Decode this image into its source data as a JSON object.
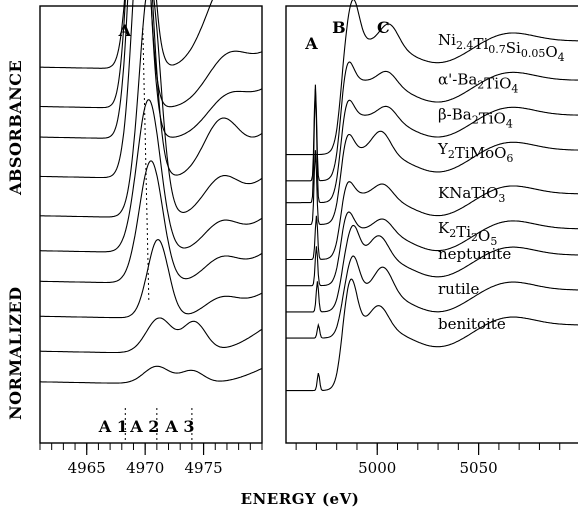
{
  "y_label_parts": [
    "ABSORBANCE",
    "NORMALIZED"
  ],
  "x_label": "ENERGY (eV)",
  "chart_data": [
    {
      "type": "line",
      "panel": "left",
      "xlabel": "ENERGY (eV)",
      "ylabel": "NORMALIZED ABSORBANCE",
      "xlim": [
        4961,
        4980
      ],
      "xticks": [
        4965,
        4970,
        4975
      ],
      "xtick_labels": [
        "4965",
        "4970",
        "4975"
      ],
      "peak_annotations": [
        {
          "label": "A",
          "x": 4969.8
        },
        {
          "label": "A 1",
          "x": 4968.3
        },
        {
          "label": "A 2",
          "x": 4971.0
        },
        {
          "label": "A 3",
          "x": 4974.0
        }
      ],
      "series": [
        {
          "baseline": 0.86,
          "peak_x": 4969.6,
          "peak_h": 0.68,
          "peak_w": 0.8,
          "bump_x": 4977.0,
          "bump_h": 0.18,
          "bump_w": 1.8,
          "step": 0.3
        },
        {
          "baseline": 0.77,
          "peak_x": 4969.4,
          "peak_h": 0.72,
          "peak_w": 0.75,
          "bump_x": 4977.0,
          "bump_h": 0.1,
          "bump_w": 1.8,
          "step": 0.22
        },
        {
          "baseline": 0.7,
          "peak_x": 4969.5,
          "peak_h": 0.72,
          "peak_w": 0.78,
          "bump_x": 4977.0,
          "bump_h": 0.08,
          "bump_w": 1.8,
          "step": 0.2
        },
        {
          "baseline": 0.61,
          "peak_x": 4969.8,
          "peak_h": 0.66,
          "peak_w": 0.85,
          "bump_x": 4976.5,
          "bump_h": 0.12,
          "bump_w": 1.5,
          "step": 0.2
        },
        {
          "baseline": 0.52,
          "peak_x": 4970.4,
          "peak_h": 0.54,
          "peak_w": 0.9,
          "bump_x": 4976.5,
          "bump_h": 0.08,
          "bump_w": 1.5,
          "step": 0.18
        },
        {
          "baseline": 0.44,
          "peak_x": 4970.3,
          "peak_h": 0.35,
          "peak_w": 1.0,
          "bump_x": 4976.5,
          "bump_h": 0.06,
          "bump_w": 1.5,
          "step": 0.16
        },
        {
          "baseline": 0.37,
          "peak_x": 4970.5,
          "peak_h": 0.28,
          "peak_w": 1.0,
          "bump_x": 4976.5,
          "bump_h": 0.05,
          "bump_w": 1.5,
          "step": 0.14
        },
        {
          "baseline": 0.29,
          "peak_x": 4971.1,
          "peak_h": 0.18,
          "peak_w": 0.9,
          "bump_x": 4976.5,
          "bump_h": 0.04,
          "bump_w": 1.5,
          "step": 0.12
        },
        {
          "baseline": 0.21,
          "peak_x": 4971.2,
          "peak_h": 0.08,
          "peak_w": 1.1,
          "bump_x": 4974.2,
          "bump_h": 0.07,
          "bump_w": 1.0,
          "step": 0.12
        },
        {
          "baseline": 0.14,
          "peak_x": 4971.0,
          "peak_h": 0.04,
          "peak_w": 1.1,
          "bump_x": 4974.0,
          "bump_h": 0.03,
          "bump_w": 1.0,
          "step": 0.08
        }
      ]
    },
    {
      "type": "line",
      "panel": "right",
      "xlabel": "ENERGY (eV)",
      "xlim": [
        4955,
        5100
      ],
      "xticks": [
        5000,
        5050
      ],
      "xtick_labels": [
        "5000",
        "5050"
      ],
      "peak_annotations": [
        {
          "label": "A",
          "x": 4969.5
        },
        {
          "label": "B",
          "x": 4988.0
        },
        {
          "label": "C",
          "x": 5006.0
        }
      ],
      "series": [
        {
          "name": "Ni2.4Ti0.7Si0.05O4",
          "label_main": [
            "Ni",
            "Ti",
            "Si",
            "O"
          ],
          "label_sub": [
            "2.4",
            "0.7",
            "0.05",
            "4"
          ],
          "edge_y": 0.92,
          "pre_y": 0.66,
          "wl_x": 4988,
          "wl_h": 0.1,
          "pre_x": 4969.5,
          "pre_h": 0.0,
          "c_x": 5006,
          "c_h": 0.05
        },
        {
          "name": "α'-Ba2TiO4",
          "label_main": [
            "α'-Ba",
            "TiO"
          ],
          "label_sub": [
            "2",
            "4"
          ],
          "edge_y": 0.83,
          "pre_y": 0.6,
          "wl_x": 4985,
          "wl_h": 0.06,
          "pre_x": 4969.5,
          "pre_h": 0.22,
          "c_x": 5005,
          "c_h": 0.03
        },
        {
          "name": "β-Ba2TiO4",
          "label_main": [
            "β-Ba",
            "TiO"
          ],
          "label_sub": [
            "2",
            "4"
          ],
          "edge_y": 0.75,
          "pre_y": 0.55,
          "wl_x": 4985,
          "wl_h": 0.05,
          "pre_x": 4969.5,
          "pre_h": 0.26,
          "c_x": 5005,
          "c_h": 0.03
        },
        {
          "name": "Y2TiMoO6",
          "label_main": [
            "Y",
            "TiMoO"
          ],
          "label_sub": [
            "2",
            "6"
          ],
          "edge_y": 0.67,
          "pre_y": 0.5,
          "wl_x": 4985,
          "wl_h": 0.05,
          "pre_x": 4969.5,
          "pre_h": 0.17,
          "c_x": 5002,
          "c_h": 0.05
        },
        {
          "name": "KNaTiO3",
          "label_main": [
            "KNaTiO"
          ],
          "label_sub": [
            "3"
          ],
          "edge_y": 0.57,
          "pre_y": 0.42,
          "wl_x": 4985,
          "wl_h": 0.04,
          "pre_x": 4970.0,
          "pre_h": 0.1,
          "c_x": 5003,
          "c_h": 0.03
        },
        {
          "name": "K2Ti2O5",
          "label_main": [
            "K",
            "Ti",
            "O"
          ],
          "label_sub": [
            "2",
            "2",
            "5"
          ],
          "edge_y": 0.49,
          "pre_y": 0.36,
          "wl_x": 4985,
          "wl_h": 0.05,
          "pre_x": 4970.0,
          "pre_h": 0.09,
          "c_x": 5003,
          "c_h": 0.03
        },
        {
          "name": "neptunite",
          "label_main": [
            "neptunite"
          ],
          "label_sub": [],
          "edge_y": 0.43,
          "pre_y": 0.3,
          "wl_x": 4988,
          "wl_h": 0.07,
          "pre_x": 4970.5,
          "pre_h": 0.07,
          "c_x": 5001,
          "c_h": 0.05
        },
        {
          "name": "rutile",
          "label_main": [
            "rutile"
          ],
          "label_sub": [],
          "edge_y": 0.35,
          "pre_y": 0.24,
          "wl_x": 4988,
          "wl_h": 0.08,
          "pre_x": 4971.0,
          "pre_h": 0.03,
          "c_x": 5003,
          "c_h": 0.06
        },
        {
          "name": "benitoite",
          "label_main": [
            "benitoite"
          ],
          "label_sub": [],
          "edge_y": 0.27,
          "pre_y": 0.12,
          "wl_x": 4987,
          "wl_h": 0.11,
          "pre_x": 4971.0,
          "pre_h": 0.04,
          "c_x": 5001,
          "c_h": 0.05
        }
      ]
    }
  ]
}
